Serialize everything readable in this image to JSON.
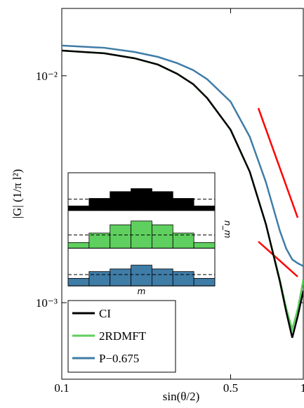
{
  "chart_data": {
    "type": "line",
    "xlabel": "sin(θ/2)",
    "ylabel": "|G| (1/π l²)",
    "xscale": "log",
    "yscale": "log",
    "xlim": [
      0.1,
      1
    ],
    "ylim": [
      0.00046,
      0.0198
    ],
    "xticks": [
      0.1,
      0.5,
      1
    ],
    "yticks": [
      {
        "value": 0.01,
        "label": "10⁻²"
      },
      {
        "value": 0.001,
        "label": "10⁻³"
      }
    ],
    "legend": "lower left",
    "x": [
      0.1,
      0.15,
      0.2,
      0.25,
      0.3,
      0.35,
      0.4,
      0.5,
      0.6,
      0.7,
      0.8,
      0.85,
      0.9,
      0.95,
      1
    ],
    "series": [
      {
        "name": "CI",
        "color": "#000000",
        "values": [
          0.01291,
          0.01256,
          0.01194,
          0.0112,
          0.01021,
          0.00918,
          0.00797,
          0.00578,
          0.00378,
          0.00222,
          0.00124,
          0.000912,
          0.000701,
          0.000879,
          0.00113
        ]
      },
      {
        "name": "2RDMFT",
        "color": "#5fcf5f",
        "values": [
          0.01291,
          0.01256,
          0.01194,
          0.0112,
          0.01021,
          0.00918,
          0.00797,
          0.00578,
          0.00378,
          0.00222,
          0.00126,
          0.000945,
          0.000763,
          0.000945,
          0.00126
        ]
      },
      {
        "name": "P−0.675",
        "color": "#3f7ca6",
        "values": [
          0.01358,
          0.01328,
          0.01273,
          0.01211,
          0.01137,
          0.01059,
          0.00965,
          0.00769,
          0.00539,
          0.0034,
          0.00207,
          0.00173,
          0.00155,
          0.00149,
          0.00145
        ]
      }
    ],
    "inset": {
      "type": "bar",
      "xlabel": "m",
      "ylabel": "n_m",
      "ylim": [
        0,
        1
      ],
      "panels": [
        {
          "color": "#000000",
          "values": [
            0.12,
            0.32,
            0.5,
            0.58,
            0.5,
            0.32,
            0.12
          ],
          "reference": 0.3
        },
        {
          "color": "#5fcf5f",
          "values": [
            0.15,
            0.4,
            0.62,
            0.72,
            0.62,
            0.4,
            0.15
          ],
          "reference": 0.35
        },
        {
          "color": "#3f7ca6",
          "values": [
            0.2,
            0.38,
            0.45,
            0.55,
            0.45,
            0.38,
            0.2
          ],
          "reference": 0.3
        }
      ]
    }
  }
}
